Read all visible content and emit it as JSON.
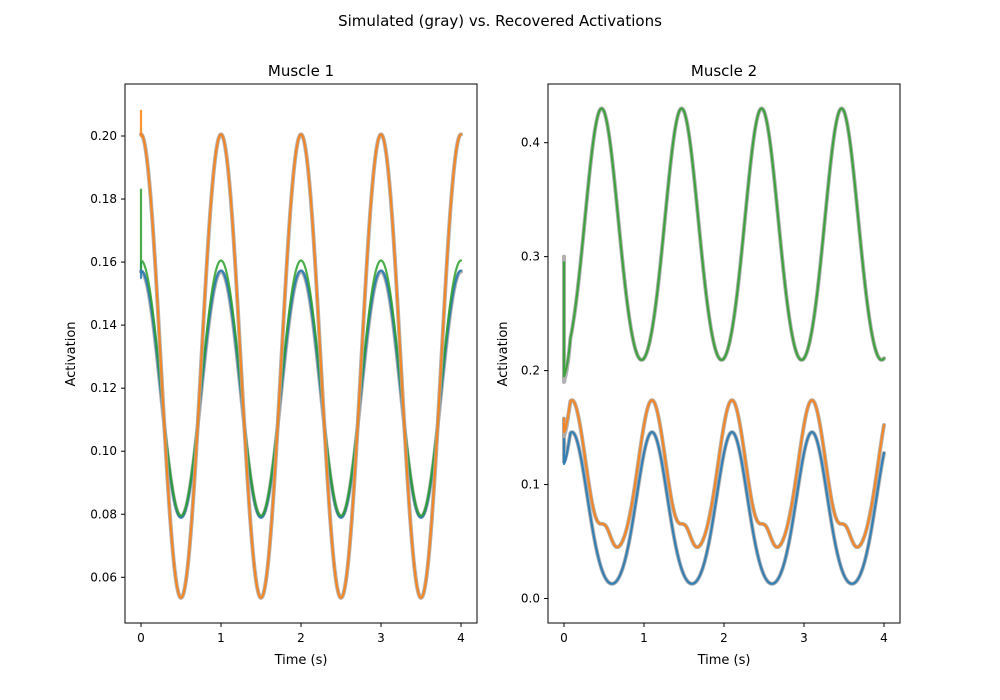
{
  "figure": {
    "suptitle": "Simulated (gray) vs. Recovered Activations"
  },
  "colors": {
    "blue": "#1f77b4",
    "orange": "#ff7f0e",
    "green": "#2ca02c",
    "gray": "#a9a9a9"
  },
  "chart_data": [
    {
      "type": "line",
      "title": "Muscle 1",
      "xlabel": "Time (s)",
      "ylabel": "Activation",
      "xlim": [
        -0.2,
        4.2
      ],
      "ylim": [
        0.0455,
        0.2165
      ],
      "xticks": [
        0,
        1,
        2,
        3,
        4
      ],
      "yticks": [
        0.06,
        0.08,
        0.1,
        0.12,
        0.14,
        0.16,
        0.18,
        0.2
      ],
      "ytick_labels": [
        "0.06",
        "0.08",
        "0.10",
        "0.12",
        "0.14",
        "0.16",
        "0.18",
        "0.20"
      ],
      "grid": false,
      "series": [
        {
          "color": "gray",
          "role": "simulated",
          "model": "cos",
          "center": 0.1181,
          "amplitude": 0.0389,
          "period": 1.0
        },
        {
          "color": "blue",
          "role": "recovered",
          "model": "cos",
          "center": 0.1181,
          "amplitude": 0.0392,
          "period": 1.0,
          "spike": [
            0.16,
            0.155
          ]
        },
        {
          "color": "green",
          "role": "recovered",
          "model": "cos",
          "center": 0.12,
          "amplitude": 0.0405,
          "period": 1.0,
          "spike": [
            0.183,
            0.158
          ]
        },
        {
          "color": "gray",
          "role": "simulated",
          "model": "cos",
          "center": 0.127,
          "amplitude": 0.0735,
          "period": 1.0
        },
        {
          "color": "orange",
          "role": "recovered",
          "model": "cos",
          "center": 0.127,
          "amplitude": 0.0735,
          "period": 1.0,
          "spike": [
            0.208,
            0.2
          ]
        }
      ]
    },
    {
      "type": "line",
      "title": "Muscle 2",
      "xlabel": "Time (s)",
      "ylabel": "Activation",
      "xlim": [
        -0.2,
        4.2
      ],
      "ylim": [
        -0.0215,
        0.4515
      ],
      "xticks": [
        0,
        1,
        2,
        3,
        4
      ],
      "yticks": [
        0.0,
        0.1,
        0.2,
        0.3,
        0.4
      ],
      "ytick_labels": [
        "0.0",
        "0.1",
        "0.2",
        "0.3",
        "0.4"
      ],
      "grid": false,
      "series": [
        {
          "color": "gray",
          "role": "simulated",
          "model": "pulse",
          "base": 0.18,
          "amplitude": 0.25,
          "peak_phase": 0.47,
          "width": 0.21,
          "start": 0.3,
          "dip_time": 0.02,
          "dip_value": 0.19
        },
        {
          "color": "green",
          "role": "recovered",
          "model": "pulse",
          "base": 0.18,
          "amplitude": 0.25,
          "peak_phase": 0.47,
          "width": 0.21,
          "start": 0.295,
          "dip_time": 0.02,
          "dip_value": 0.195
        },
        {
          "color": "gray",
          "role": "simulated",
          "model": "pulse",
          "base": 0.037,
          "amplitude": 0.137,
          "peak_phase": 0.1,
          "width": 0.17,
          "bump_phase": 0.52,
          "bump_amp": 0.02,
          "bump_width": 0.07,
          "start": 0.158,
          "dip_time": 0.02,
          "dip_value": 0.143
        },
        {
          "color": "orange",
          "role": "recovered",
          "model": "pulse",
          "base": 0.037,
          "amplitude": 0.137,
          "peak_phase": 0.1,
          "width": 0.17,
          "bump_phase": 0.52,
          "bump_amp": 0.02,
          "bump_width": 0.07,
          "start": 0.158,
          "dip_time": 0.02,
          "dip_value": 0.146
        },
        {
          "color": "gray",
          "role": "simulated",
          "model": "pulse",
          "base": 0.004,
          "amplitude": 0.142,
          "peak_phase": 0.1,
          "width": 0.19,
          "start": 0.143,
          "dip_time": 0.02,
          "dip_value": 0.12
        },
        {
          "color": "blue",
          "role": "recovered",
          "model": "pulse",
          "base": 0.004,
          "amplitude": 0.142,
          "peak_phase": 0.1,
          "width": 0.19,
          "start": 0.14,
          "dip_time": 0.02,
          "dip_value": 0.118
        }
      ]
    }
  ]
}
